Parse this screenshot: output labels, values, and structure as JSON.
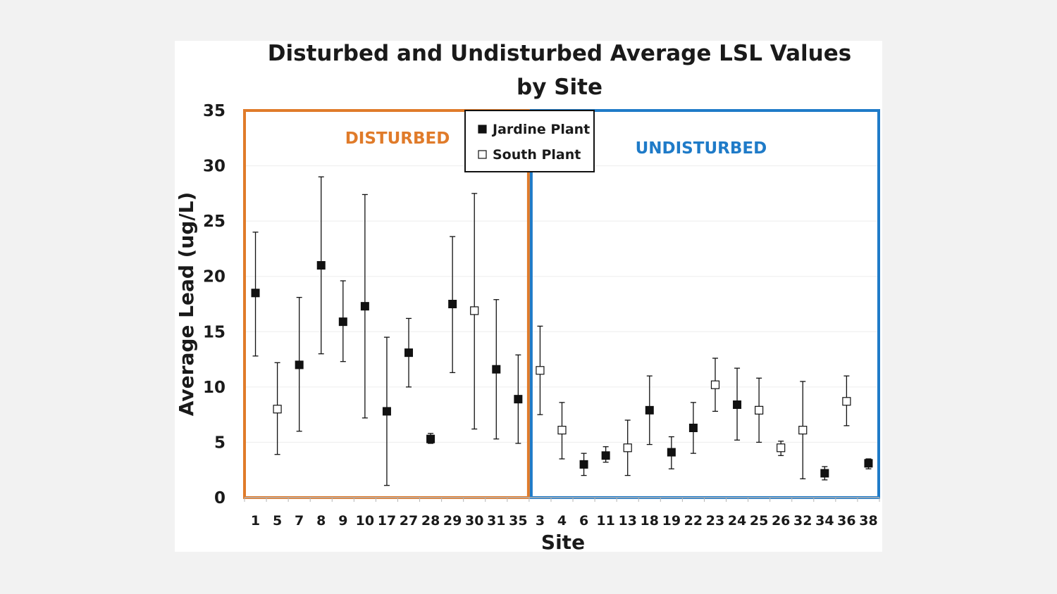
{
  "chart_data": {
    "type": "scatter",
    "title": [
      "Disturbed and Undisturbed Average LSL Values",
      "by Site"
    ],
    "xlabel": "Site",
    "ylabel": "Average Lead (ug/L)",
    "ylim": [
      0,
      35
    ],
    "yticks": [
      0,
      5,
      10,
      15,
      20,
      25,
      30,
      35
    ],
    "grid": true,
    "legend_position": "top-center",
    "colors": {
      "disturbed": "#e07b2a",
      "undisturbed": "#1f7bc8",
      "marker": "#111111",
      "grid": "#ededed"
    },
    "categories": [
      "1",
      "5",
      "7",
      "8",
      "9",
      "10",
      "17",
      "27",
      "28",
      "29",
      "30",
      "31",
      "35",
      "3",
      "4",
      "6",
      "11",
      "13",
      "18",
      "19",
      "22",
      "23",
      "24",
      "25",
      "26",
      "32",
      "34",
      "36",
      "38"
    ],
    "groups": [
      {
        "name": "DISTURBED",
        "color": "#e07b2a",
        "from": "1",
        "to": "35"
      },
      {
        "name": "UNDISTURBED",
        "color": "#1f7bc8",
        "from": "3",
        "to": "38"
      }
    ],
    "series": [
      {
        "name": "Jardine Plant",
        "marker": "filled-square",
        "points": [
          {
            "site": "1",
            "y": 18.5,
            "low": 12.8,
            "high": 24.0
          },
          {
            "site": "7",
            "y": 12.0,
            "low": 6.0,
            "high": 18.1
          },
          {
            "site": "8",
            "y": 21.0,
            "low": 13.0,
            "high": 29.0
          },
          {
            "site": "9",
            "y": 15.9,
            "low": 12.3,
            "high": 19.6
          },
          {
            "site": "10",
            "y": 17.3,
            "low": 7.2,
            "high": 27.4
          },
          {
            "site": "17",
            "y": 7.8,
            "low": 1.1,
            "high": 14.5
          },
          {
            "site": "27",
            "y": 13.1,
            "low": 10.0,
            "high": 16.2
          },
          {
            "site": "28",
            "y": 5.3,
            "low": 4.9,
            "high": 5.8
          },
          {
            "site": "29",
            "y": 17.5,
            "low": 11.3,
            "high": 23.6
          },
          {
            "site": "31",
            "y": 11.6,
            "low": 5.3,
            "high": 17.9
          },
          {
            "site": "35",
            "y": 8.9,
            "low": 4.9,
            "high": 12.9
          },
          {
            "site": "6",
            "y": 3.0,
            "low": 2.0,
            "high": 4.0
          },
          {
            "site": "11",
            "y": 3.8,
            "low": 3.2,
            "high": 4.6
          },
          {
            "site": "18",
            "y": 7.9,
            "low": 4.8,
            "high": 11.0
          },
          {
            "site": "19",
            "y": 4.1,
            "low": 2.6,
            "high": 5.5
          },
          {
            "site": "22",
            "y": 6.3,
            "low": 4.0,
            "high": 8.6
          },
          {
            "site": "24",
            "y": 8.4,
            "low": 5.2,
            "high": 11.7
          },
          {
            "site": "34",
            "y": 2.2,
            "low": 1.6,
            "high": 2.8
          },
          {
            "site": "38",
            "y": 3.1,
            "low": 2.6,
            "high": 3.5
          }
        ]
      },
      {
        "name": "South Plant",
        "marker": "open-square",
        "points": [
          {
            "site": "5",
            "y": 8.0,
            "low": 3.9,
            "high": 12.2
          },
          {
            "site": "30",
            "y": 16.9,
            "low": 6.2,
            "high": 27.5
          },
          {
            "site": "3",
            "y": 11.5,
            "low": 7.5,
            "high": 15.5
          },
          {
            "site": "4",
            "y": 6.1,
            "low": 3.5,
            "high": 8.6
          },
          {
            "site": "13",
            "y": 4.5,
            "low": 2.0,
            "high": 7.0
          },
          {
            "site": "23",
            "y": 10.2,
            "low": 7.8,
            "high": 12.6
          },
          {
            "site": "25",
            "y": 7.9,
            "low": 5.0,
            "high": 10.8
          },
          {
            "site": "26",
            "y": 4.5,
            "low": 3.8,
            "high": 5.1
          },
          {
            "site": "32",
            "y": 6.1,
            "low": 1.7,
            "high": 10.5
          },
          {
            "site": "36",
            "y": 8.7,
            "low": 6.5,
            "high": 11.0
          }
        ]
      }
    ]
  }
}
